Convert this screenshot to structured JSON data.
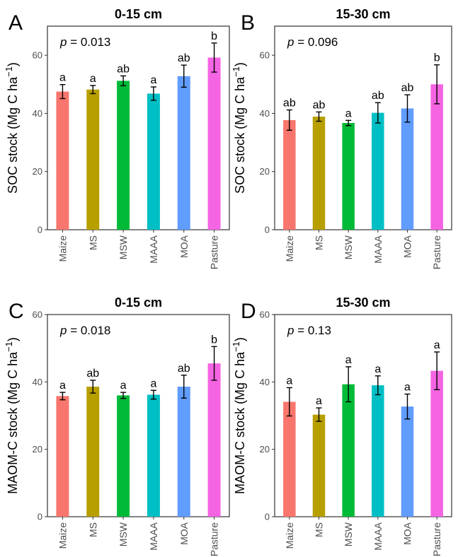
{
  "colors": {
    "Maize": "#f8766d",
    "MS": "#b79f00",
    "MSW": "#00ba38",
    "MAAA": "#00bfc4",
    "MOA": "#619cff",
    "Pasture": "#f564e3"
  },
  "chart_data": [
    {
      "type": "bar",
      "panel": "A",
      "title": "0-15 cm",
      "ylabel": "SOC stock (Mg C ha⁻¹)",
      "pvalue_label": "p",
      "pvalue": "= 0.013",
      "categories": [
        "Maize",
        "MS",
        "MSW",
        "MAAA",
        "MOA",
        "Pasture"
      ],
      "values": [
        47.5,
        48.2,
        51.2,
        46.8,
        52.8,
        59.2
      ],
      "errors": [
        2.4,
        1.4,
        1.7,
        2.3,
        3.8,
        5.0
      ],
      "letters": [
        "a",
        "a",
        "ab",
        "a",
        "ab",
        "b"
      ],
      "yticks": [
        "0",
        "20",
        "40",
        "60"
      ],
      "ylim": [
        0,
        70
      ]
    },
    {
      "type": "bar",
      "panel": "B",
      "title": "15-30 cm",
      "ylabel": "SOC stock (Mg C ha⁻¹)",
      "pvalue_label": "p",
      "pvalue": "= 0.096",
      "categories": [
        "Maize",
        "MS",
        "MSW",
        "MAAA",
        "MOA",
        "Pasture"
      ],
      "values": [
        37.7,
        38.9,
        36.7,
        40.2,
        41.7,
        50.0
      ],
      "errors": [
        3.5,
        1.6,
        0.9,
        3.5,
        4.7,
        6.7
      ],
      "letters": [
        "ab",
        "ab",
        "a",
        "ab",
        "ab",
        "b"
      ],
      "yticks": [
        "0",
        "20",
        "40",
        "60"
      ],
      "ylim": [
        0,
        70
      ]
    },
    {
      "type": "bar",
      "panel": "C",
      "title": "0-15 cm",
      "ylabel": "MAOM-C stock (Mg C ha⁻¹)",
      "pvalue_label": "p",
      "pvalue": "= 0.018",
      "categories": [
        "Maize",
        "MS",
        "MSW",
        "MAAA",
        "MOA",
        "Pasture"
      ],
      "values": [
        35.8,
        38.6,
        36.0,
        36.2,
        38.6,
        45.5
      ],
      "errors": [
        1.1,
        1.9,
        0.9,
        1.3,
        3.4,
        5.0
      ],
      "letters": [
        "a",
        "ab",
        "a",
        "a",
        "ab",
        "b"
      ],
      "yticks": [
        "0",
        "20",
        "40",
        "60"
      ],
      "ylim": [
        0,
        60
      ]
    },
    {
      "type": "bar",
      "panel": "D",
      "title": "15-30 cm",
      "ylabel": "MAOM-C stock (Mg C ha⁻¹)",
      "pvalue_label": "p",
      "pvalue": "= 0.13",
      "categories": [
        "Maize",
        "MS",
        "MSW",
        "MAAA",
        "MOA",
        "Pasture"
      ],
      "values": [
        34.1,
        30.3,
        39.3,
        39.0,
        32.7,
        43.3
      ],
      "errors": [
        4.2,
        2.0,
        5.2,
        2.8,
        3.7,
        5.6
      ],
      "letters": [
        "a",
        "a",
        "a",
        "a",
        "a",
        "a"
      ],
      "yticks": [
        "0",
        "20",
        "40",
        "60"
      ],
      "ylim": [
        0,
        60
      ]
    }
  ]
}
